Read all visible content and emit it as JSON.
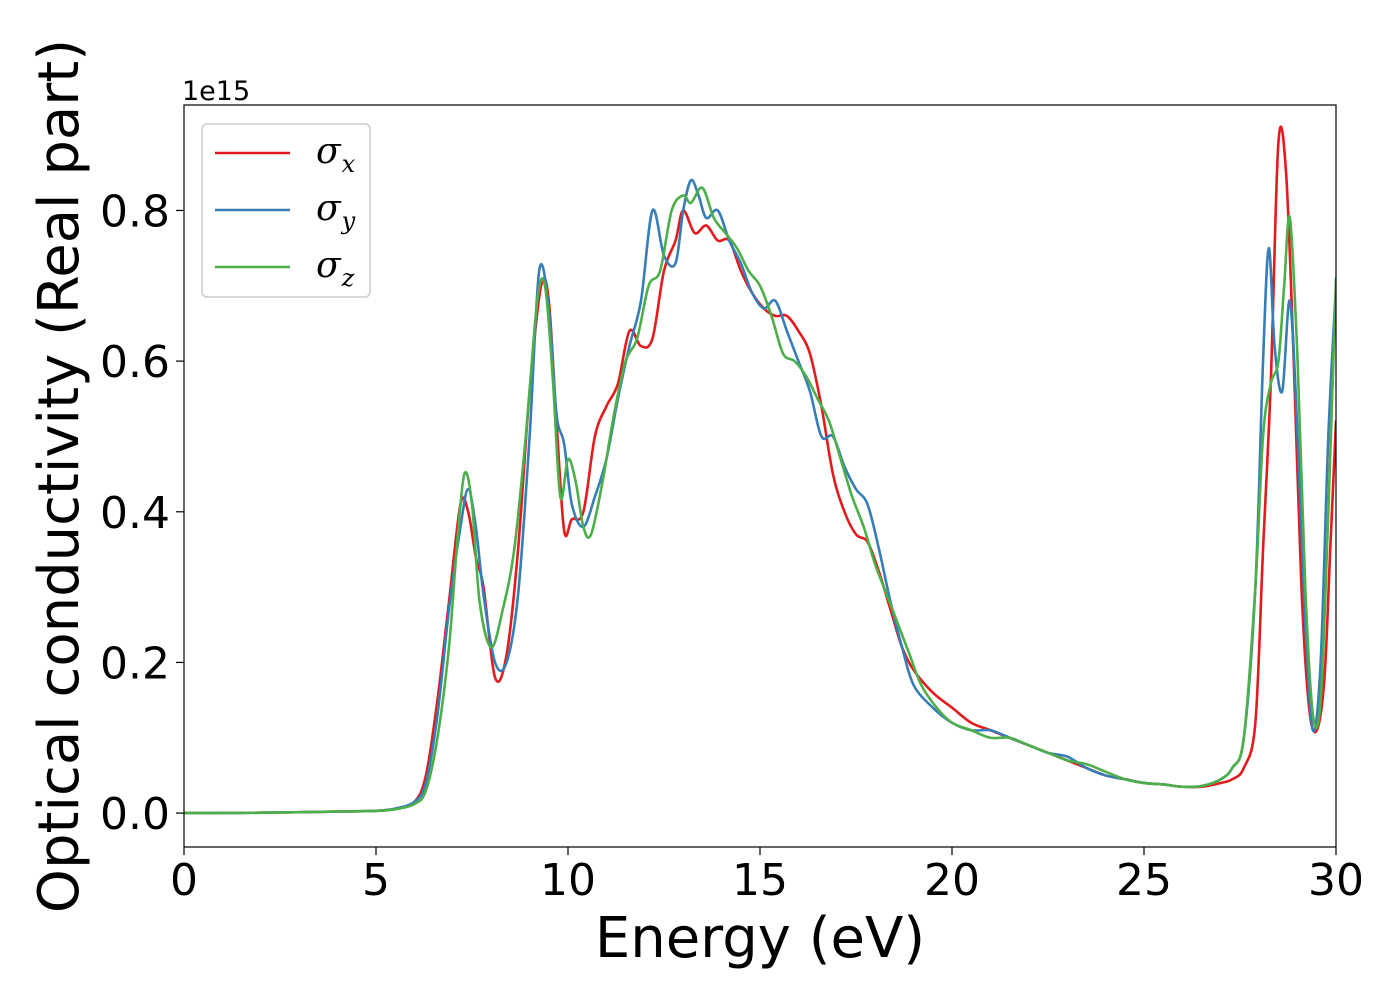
{
  "chart_data": {
    "type": "line",
    "title": "",
    "xlabel": "Energy (eV)",
    "ylabel": "Optical conductivity (Real part)",
    "offset_text": "1e15",
    "xlim": [
      0,
      30
    ],
    "ylim": [
      -0.045,
      0.94
    ],
    "xticks": [
      0,
      5,
      10,
      15,
      20,
      25,
      30
    ],
    "yticks": [
      0.0,
      0.2,
      0.4,
      0.6,
      0.8
    ],
    "xtick_labels": [
      "0",
      "5",
      "10",
      "15",
      "20",
      "25",
      "30"
    ],
    "ytick_labels": [
      "0.0",
      "0.2",
      "0.4",
      "0.6",
      "0.8"
    ],
    "legend_position": "top-left",
    "grid": false,
    "series": [
      {
        "name": "σx",
        "symbol": "σ",
        "subscript": "x",
        "color": "#e41a1c",
        "x": [
          0,
          2,
          4,
          5,
          5.5,
          6,
          6.3,
          6.6,
          6.9,
          7.2,
          7.4,
          7.6,
          7.8,
          8.1,
          8.4,
          8.7,
          9.0,
          9.3,
          9.5,
          9.7,
          9.9,
          10.1,
          10.4,
          10.7,
          11.0,
          11.3,
          11.6,
          11.9,
          12.2,
          12.5,
          12.8,
          13.0,
          13.3,
          13.6,
          13.9,
          14.2,
          14.5,
          14.8,
          15.1,
          15.4,
          15.7,
          16.0,
          16.3,
          16.6,
          16.9,
          17.2,
          17.5,
          17.8,
          18.1,
          18.4,
          18.7,
          19.0,
          19.5,
          20.0,
          20.5,
          21.0,
          21.5,
          22.0,
          22.5,
          23.0,
          23.5,
          24.0,
          24.5,
          25.0,
          25.5,
          26.0,
          26.5,
          27.0,
          27.3,
          27.6,
          27.9,
          28.1,
          28.3,
          28.5,
          28.7,
          28.9,
          29.1,
          29.3,
          29.5,
          29.7,
          29.85,
          30.0
        ],
        "y": [
          0.0,
          0.0005,
          0.002,
          0.003,
          0.006,
          0.015,
          0.05,
          0.15,
          0.28,
          0.41,
          0.4,
          0.34,
          0.3,
          0.18,
          0.21,
          0.35,
          0.56,
          0.7,
          0.68,
          0.52,
          0.375,
          0.39,
          0.4,
          0.5,
          0.54,
          0.57,
          0.64,
          0.62,
          0.63,
          0.72,
          0.76,
          0.8,
          0.77,
          0.78,
          0.76,
          0.76,
          0.72,
          0.69,
          0.67,
          0.66,
          0.66,
          0.64,
          0.61,
          0.54,
          0.45,
          0.4,
          0.37,
          0.36,
          0.32,
          0.27,
          0.22,
          0.19,
          0.16,
          0.14,
          0.12,
          0.11,
          0.1,
          0.09,
          0.08,
          0.07,
          0.06,
          0.05,
          0.045,
          0.04,
          0.038,
          0.035,
          0.035,
          0.04,
          0.045,
          0.06,
          0.12,
          0.35,
          0.57,
          0.89,
          0.85,
          0.6,
          0.3,
          0.14,
          0.11,
          0.18,
          0.35,
          0.52
        ]
      },
      {
        "name": "σy",
        "symbol": "σ",
        "subscript": "y",
        "color": "#377eb8",
        "x": [
          0,
          2,
          4,
          5,
          5.5,
          6,
          6.3,
          6.6,
          6.9,
          7.2,
          7.4,
          7.6,
          7.8,
          8.1,
          8.4,
          8.7,
          9.0,
          9.25,
          9.5,
          9.7,
          9.9,
          10.1,
          10.4,
          10.7,
          11.0,
          11.3,
          11.6,
          11.9,
          12.2,
          12.5,
          12.8,
          13.0,
          13.2,
          13.4,
          13.6,
          13.9,
          14.2,
          14.5,
          14.8,
          15.1,
          15.4,
          15.7,
          16.0,
          16.3,
          16.6,
          16.9,
          17.2,
          17.5,
          17.8,
          18.1,
          18.4,
          18.7,
          19.0,
          19.5,
          20.0,
          20.5,
          21.0,
          21.5,
          22.0,
          22.5,
          23.0,
          23.5,
          24.0,
          24.5,
          25.0,
          25.5,
          26.0,
          26.5,
          27.0,
          27.3,
          27.6,
          27.9,
          28.1,
          28.25,
          28.4,
          28.6,
          28.8,
          29.0,
          29.2,
          29.4,
          29.6,
          29.8,
          30.0
        ],
        "y": [
          0.0,
          0.0005,
          0.002,
          0.003,
          0.006,
          0.015,
          0.04,
          0.13,
          0.27,
          0.38,
          0.43,
          0.38,
          0.29,
          0.2,
          0.2,
          0.29,
          0.5,
          0.72,
          0.67,
          0.53,
          0.49,
          0.41,
          0.38,
          0.42,
          0.47,
          0.55,
          0.62,
          0.68,
          0.8,
          0.74,
          0.73,
          0.8,
          0.84,
          0.82,
          0.79,
          0.8,
          0.76,
          0.73,
          0.69,
          0.67,
          0.68,
          0.64,
          0.6,
          0.56,
          0.5,
          0.5,
          0.46,
          0.43,
          0.41,
          0.35,
          0.28,
          0.22,
          0.17,
          0.14,
          0.12,
          0.11,
          0.11,
          0.1,
          0.09,
          0.08,
          0.075,
          0.06,
          0.05,
          0.045,
          0.04,
          0.038,
          0.035,
          0.036,
          0.045,
          0.06,
          0.1,
          0.3,
          0.6,
          0.75,
          0.62,
          0.56,
          0.68,
          0.5,
          0.25,
          0.11,
          0.2,
          0.5,
          0.7
        ]
      },
      {
        "name": "σz",
        "symbol": "σ",
        "subscript": "z",
        "color": "#4daf4a",
        "x": [
          0,
          2,
          4,
          5,
          5.5,
          6,
          6.3,
          6.6,
          6.9,
          7.1,
          7.3,
          7.5,
          7.7,
          8.0,
          8.3,
          8.6,
          8.9,
          9.2,
          9.4,
          9.6,
          9.8,
          10.0,
          10.2,
          10.4,
          10.6,
          10.9,
          11.2,
          11.5,
          11.8,
          12.1,
          12.4,
          12.7,
          13.0,
          13.2,
          13.5,
          13.8,
          14.1,
          14.4,
          14.7,
          15.0,
          15.3,
          15.6,
          15.9,
          16.2,
          16.5,
          16.8,
          17.1,
          17.4,
          17.7,
          18.0,
          18.3,
          18.6,
          18.9,
          19.2,
          19.6,
          20.0,
          20.5,
          21.0,
          21.5,
          22.0,
          22.5,
          23.0,
          23.5,
          24.0,
          24.5,
          25.0,
          25.5,
          26.0,
          26.5,
          27.0,
          27.3,
          27.6,
          27.9,
          28.1,
          28.3,
          28.5,
          28.65,
          28.8,
          29.0,
          29.2,
          29.4,
          29.6,
          29.8,
          30.0
        ],
        "y": [
          0.0,
          0.0005,
          0.002,
          0.003,
          0.005,
          0.012,
          0.03,
          0.1,
          0.22,
          0.35,
          0.45,
          0.41,
          0.28,
          0.22,
          0.27,
          0.35,
          0.5,
          0.68,
          0.7,
          0.58,
          0.42,
          0.47,
          0.44,
          0.38,
          0.37,
          0.44,
          0.53,
          0.6,
          0.63,
          0.7,
          0.72,
          0.8,
          0.82,
          0.81,
          0.83,
          0.79,
          0.77,
          0.75,
          0.72,
          0.7,
          0.66,
          0.61,
          0.6,
          0.58,
          0.55,
          0.52,
          0.47,
          0.42,
          0.38,
          0.33,
          0.29,
          0.25,
          0.21,
          0.17,
          0.14,
          0.12,
          0.11,
          0.1,
          0.1,
          0.09,
          0.08,
          0.07,
          0.065,
          0.055,
          0.045,
          0.04,
          0.038,
          0.035,
          0.036,
          0.045,
          0.06,
          0.1,
          0.3,
          0.5,
          0.57,
          0.6,
          0.7,
          0.79,
          0.6,
          0.3,
          0.13,
          0.15,
          0.4,
          0.71
        ]
      }
    ]
  }
}
